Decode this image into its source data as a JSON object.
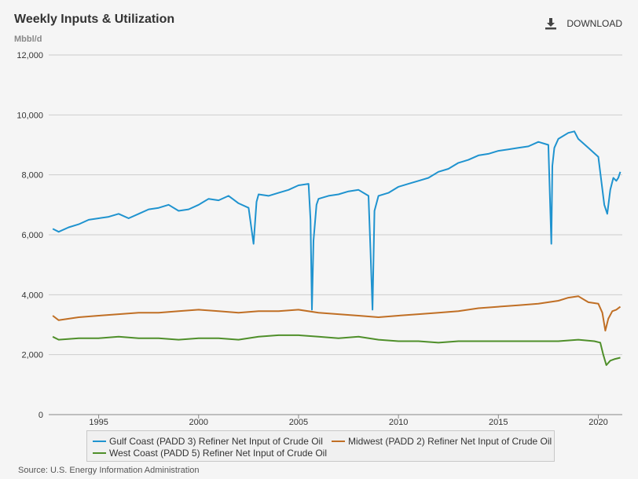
{
  "header": {
    "title": "Weekly Inputs & Utilization",
    "download_label": "DOWNLOAD",
    "unit": "Mbbl/d"
  },
  "source": "Source: U.S. Energy Information Administration",
  "colors": {
    "gulf_coast": "#1f93cf",
    "midwest": "#c06f25",
    "west_coast": "#4f8f2a",
    "gridline": "#cccccc"
  },
  "icons": {
    "download": "download-icon"
  },
  "chart_data": {
    "type": "line",
    "title": "Weekly Inputs & Utilization",
    "ylabel": "Mbbl/d",
    "xlabel": "",
    "ylim": [
      0,
      12000
    ],
    "xlim": [
      1992.5,
      2021.2
    ],
    "y_ticks": [
      0,
      2000,
      4000,
      6000,
      8000,
      10000,
      12000
    ],
    "y_tick_labels": [
      "0",
      "2,000",
      "4,000",
      "6,000",
      "8,000",
      "10,000",
      "12,000"
    ],
    "x_ticks": [
      1995,
      2000,
      2005,
      2010,
      2015,
      2020
    ],
    "x_tick_labels": [
      "1995",
      "2000",
      "2005",
      "2010",
      "2015",
      "2020"
    ],
    "grid": true,
    "legend_position": "bottom",
    "series": [
      {
        "name": "Gulf Coast (PADD 3) Refiner Net Input of Crude Oil",
        "color": "#1f93cf",
        "x": [
          1992.7,
          1993.0,
          1993.5,
          1994.0,
          1994.5,
          1995.0,
          1995.5,
          1996.0,
          1996.5,
          1997.0,
          1997.5,
          1998.0,
          1998.5,
          1999.0,
          1999.5,
          2000.0,
          2000.5,
          2001.0,
          2001.5,
          2002.0,
          2002.5,
          2002.75,
          2002.9,
          2003.0,
          2003.5,
          2004.0,
          2004.5,
          2005.0,
          2005.5,
          2005.6,
          2005.67,
          2005.75,
          2005.9,
          2006.0,
          2006.5,
          2007.0,
          2007.5,
          2008.0,
          2008.5,
          2008.6,
          2008.7,
          2008.8,
          2009.0,
          2009.5,
          2010.0,
          2010.5,
          2011.0,
          2011.5,
          2012.0,
          2012.5,
          2013.0,
          2013.5,
          2014.0,
          2014.5,
          2015.0,
          2015.5,
          2016.0,
          2016.5,
          2017.0,
          2017.5,
          2017.65,
          2017.7,
          2017.8,
          2018.0,
          2018.5,
          2018.8,
          2019.0,
          2019.5,
          2020.0,
          2020.15,
          2020.3,
          2020.45,
          2020.6,
          2020.75,
          2020.9,
          2021.0,
          2021.1
        ],
        "values": [
          6200,
          6100,
          6250,
          6350,
          6500,
          6550,
          6600,
          6700,
          6550,
          6700,
          6850,
          6900,
          7000,
          6800,
          6850,
          7000,
          7200,
          7150,
          7300,
          7050,
          6900,
          5700,
          7100,
          7350,
          7300,
          7400,
          7500,
          7650,
          7700,
          6500,
          3500,
          5800,
          7000,
          7200,
          7300,
          7350,
          7450,
          7500,
          7300,
          5500,
          3500,
          6800,
          7300,
          7400,
          7600,
          7700,
          7800,
          7900,
          8100,
          8200,
          8400,
          8500,
          8650,
          8700,
          8800,
          8850,
          8900,
          8950,
          9100,
          9000,
          5700,
          8300,
          8900,
          9200,
          9400,
          9450,
          9200,
          8900,
          8600,
          7800,
          7000,
          6700,
          7500,
          7900,
          7800,
          7900,
          8100
        ]
      },
      {
        "name": "Midwest (PADD 2) Refiner Net Input of Crude Oil",
        "color": "#c06f25",
        "x": [
          1992.7,
          1993.0,
          1993.5,
          1994.0,
          1995.0,
          1996.0,
          1997.0,
          1998.0,
          1999.0,
          2000.0,
          2001.0,
          2002.0,
          2003.0,
          2004.0,
          2005.0,
          2006.0,
          2007.0,
          2008.0,
          2009.0,
          2010.0,
          2011.0,
          2012.0,
          2013.0,
          2014.0,
          2015.0,
          2016.0,
          2017.0,
          2018.0,
          2018.5,
          2019.0,
          2019.5,
          2020.0,
          2020.2,
          2020.35,
          2020.5,
          2020.7,
          2020.9,
          2021.1
        ],
        "values": [
          3300,
          3150,
          3200,
          3250,
          3300,
          3350,
          3400,
          3400,
          3450,
          3500,
          3450,
          3400,
          3450,
          3450,
          3500,
          3400,
          3350,
          3300,
          3250,
          3300,
          3350,
          3400,
          3450,
          3550,
          3600,
          3650,
          3700,
          3800,
          3900,
          3950,
          3750,
          3700,
          3400,
          2800,
          3200,
          3450,
          3500,
          3600
        ]
      },
      {
        "name": "West Coast (PADD 5) Refiner Net Input of Crude Oil",
        "color": "#4f8f2a",
        "x": [
          1992.7,
          1993.0,
          1994.0,
          1995.0,
          1996.0,
          1997.0,
          1998.0,
          1999.0,
          2000.0,
          2001.0,
          2002.0,
          2003.0,
          2004.0,
          2005.0,
          2006.0,
          2007.0,
          2008.0,
          2009.0,
          2010.0,
          2011.0,
          2012.0,
          2013.0,
          2014.0,
          2015.0,
          2016.0,
          2017.0,
          2018.0,
          2019.0,
          2019.8,
          2020.1,
          2020.25,
          2020.4,
          2020.6,
          2020.8,
          2021.1
        ],
        "values": [
          2600,
          2500,
          2550,
          2550,
          2600,
          2550,
          2550,
          2500,
          2550,
          2550,
          2500,
          2600,
          2650,
          2650,
          2600,
          2550,
          2600,
          2500,
          2450,
          2450,
          2400,
          2450,
          2450,
          2450,
          2450,
          2450,
          2450,
          2500,
          2450,
          2400,
          2000,
          1650,
          1800,
          1850,
          1900
        ]
      }
    ]
  }
}
